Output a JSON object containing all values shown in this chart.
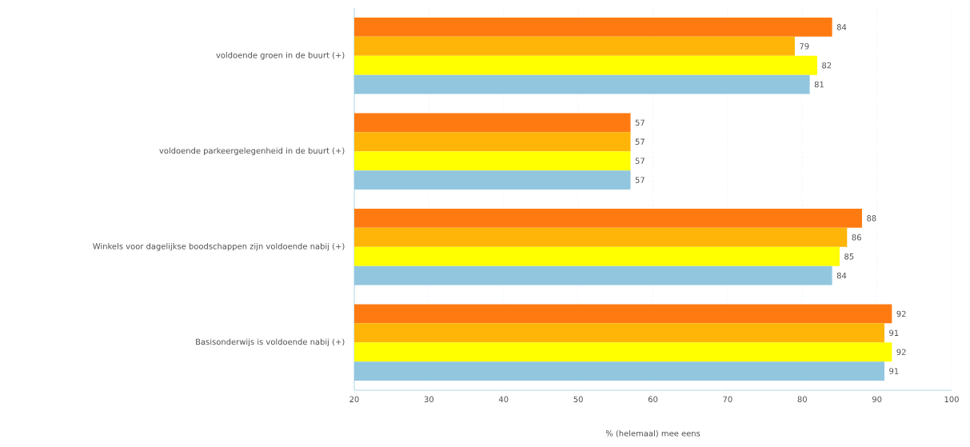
{
  "chart_data": {
    "type": "bar",
    "orientation": "horizontal",
    "xlabel": "% (helemaal) mee eens",
    "categories": [
      "voldoende groen in de buurt (+)",
      "voldoende parkeergelegenheid in de buurt (+)",
      "Winkels voor dagelijkse boodschappen zijn voldoende nabij (+)",
      "Basisonderwijs is voldoende nabij (+)"
    ],
    "series": [
      {
        "color": "#ff7b12",
        "values": [
          84,
          57,
          88,
          92
        ]
      },
      {
        "color": "#ffb508",
        "values": [
          79,
          57,
          86,
          91
        ]
      },
      {
        "color": "#ffff00",
        "values": [
          82,
          57,
          85,
          92
        ]
      },
      {
        "color": "#92c6df",
        "values": [
          81,
          57,
          84,
          91
        ]
      }
    ],
    "xlim": [
      20,
      100
    ],
    "xticks": [
      20,
      30,
      40,
      50,
      60,
      70,
      80,
      90,
      100
    ],
    "data_labels": true,
    "grid": "x"
  }
}
